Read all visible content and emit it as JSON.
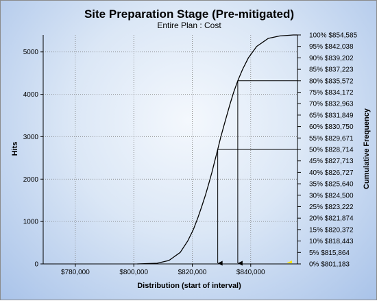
{
  "chart_data": {
    "type": "line",
    "title": "Site Preparation Stage (Pre-mitigated)",
    "subtitle": "Entire Plan : Cost",
    "xlabel": "Distribution (start of interval)",
    "ylabel": "Hits",
    "y2label": "Cumulative Frequency",
    "xlim": [
      769000,
      856000
    ],
    "ylim": [
      0,
      5400
    ],
    "x_ticks": [
      {
        "value": 780000,
        "label": "$780,000"
      },
      {
        "value": 800000,
        "label": "$800,000"
      },
      {
        "value": 820000,
        "label": "$820,000"
      },
      {
        "value": 840000,
        "label": "$840,000"
      }
    ],
    "y_ticks": [
      0,
      1000,
      2000,
      3000,
      4000,
      5000
    ],
    "cumulative_ticks": [
      {
        "pct": 0,
        "label": "0% $801,183"
      },
      {
        "pct": 5,
        "label": "5% $815,864"
      },
      {
        "pct": 10,
        "label": "10% $818,443"
      },
      {
        "pct": 15,
        "label": "15% $820,372"
      },
      {
        "pct": 20,
        "label": "20% $821,874"
      },
      {
        "pct": 25,
        "label": "25% $823,222"
      },
      {
        "pct": 30,
        "label": "30% $824,500"
      },
      {
        "pct": 35,
        "label": "35% $825,640"
      },
      {
        "pct": 40,
        "label": "40% $826,727"
      },
      {
        "pct": 45,
        "label": "45% $827,713"
      },
      {
        "pct": 50,
        "label": "50% $828,714"
      },
      {
        "pct": 55,
        "label": "55% $829,671"
      },
      {
        "pct": 60,
        "label": "60% $830,750"
      },
      {
        "pct": 65,
        "label": "65% $831,849"
      },
      {
        "pct": 70,
        "label": "70% $832,963"
      },
      {
        "pct": 75,
        "label": "75% $834,172"
      },
      {
        "pct": 80,
        "label": "80% $835,572"
      },
      {
        "pct": 85,
        "label": "85% $837,223"
      },
      {
        "pct": 90,
        "label": "90% $839,202"
      },
      {
        "pct": 95,
        "label": "95% $842,038"
      },
      {
        "pct": 100,
        "label": "100% $854,585"
      }
    ],
    "cumulative_curve": [
      {
        "x": 801183,
        "pct": 0
      },
      {
        "x": 808000,
        "pct": 0.3
      },
      {
        "x": 812000,
        "pct": 1.5
      },
      {
        "x": 815864,
        "pct": 5
      },
      {
        "x": 818443,
        "pct": 10
      },
      {
        "x": 820372,
        "pct": 15
      },
      {
        "x": 821874,
        "pct": 20
      },
      {
        "x": 823222,
        "pct": 25
      },
      {
        "x": 824500,
        "pct": 30
      },
      {
        "x": 825640,
        "pct": 35
      },
      {
        "x": 826727,
        "pct": 40
      },
      {
        "x": 827713,
        "pct": 45
      },
      {
        "x": 828714,
        "pct": 50
      },
      {
        "x": 829671,
        "pct": 55
      },
      {
        "x": 830750,
        "pct": 60
      },
      {
        "x": 831849,
        "pct": 65
      },
      {
        "x": 832963,
        "pct": 70
      },
      {
        "x": 834172,
        "pct": 75
      },
      {
        "x": 835572,
        "pct": 80
      },
      {
        "x": 837223,
        "pct": 85
      },
      {
        "x": 839202,
        "pct": 90
      },
      {
        "x": 842038,
        "pct": 95
      },
      {
        "x": 846000,
        "pct": 98.5
      },
      {
        "x": 850000,
        "pct": 99.6
      },
      {
        "x": 854585,
        "pct": 100
      }
    ],
    "markers": [
      {
        "pct": 50,
        "x": 828714
      },
      {
        "pct": 80,
        "x": 835572
      }
    ],
    "grid": true,
    "colors": {
      "curve": "#000000",
      "grid": "#7a7a7a",
      "marker": "#000000",
      "highlight": "#ffe800"
    }
  }
}
